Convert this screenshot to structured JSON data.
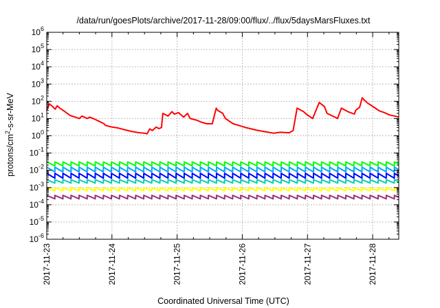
{
  "chart_data": {
    "type": "line",
    "title": "/data/run/goesPlots/archive/2017-11-28/09:00/flux/../flux/5daysMarsFluxes.txt",
    "xlabel": "Coordinated Universal Time (UTC)",
    "ylabel": "protons/cm²-s-sr-MeV",
    "ylabel_parts": {
      "pre": "protons/cm",
      "sup": "2",
      "post": "-s-sr-MeV"
    },
    "y_scale": "log",
    "ylim": [
      1e-06,
      1000000.0
    ],
    "y_ticks": [
      {
        "base": "10",
        "exp": "-6",
        "value": 1e-06
      },
      {
        "base": "10",
        "exp": "-5",
        "value": 1e-05
      },
      {
        "base": "10",
        "exp": "-4",
        "value": 0.0001
      },
      {
        "base": "10",
        "exp": "-3",
        "value": 0.001
      },
      {
        "base": "10",
        "exp": "-2",
        "value": 0.01
      },
      {
        "base": "10",
        "exp": "-1",
        "value": 0.1
      },
      {
        "base": "10",
        "exp": "0",
        "value": 1
      },
      {
        "base": "10",
        "exp": "1",
        "value": 10
      },
      {
        "base": "10",
        "exp": "2",
        "value": 100
      },
      {
        "base": "10",
        "exp": "3",
        "value": 1000
      },
      {
        "base": "10",
        "exp": "4",
        "value": 10000
      },
      {
        "base": "10",
        "exp": "5",
        "value": 100000
      },
      {
        "base": "10",
        "exp": "6",
        "value": 1000000
      }
    ],
    "xlim": [
      0,
      5.4
    ],
    "x_ticks": [
      {
        "label": "2017-11-23",
        "value": 0
      },
      {
        "label": "2017-11-24",
        "value": 1
      },
      {
        "label": "2017-11-25",
        "value": 2
      },
      {
        "label": "2017-11-26",
        "value": 3
      },
      {
        "label": "2017-11-27",
        "value": 4
      },
      {
        "label": "2017-11-28",
        "value": 5
      }
    ],
    "grid": true,
    "legend": "none",
    "series": [
      {
        "color": "#ff0000",
        "x": [
          0,
          0.04,
          0.09,
          0.13,
          0.16,
          0.2,
          0.28,
          0.36,
          0.44,
          0.5,
          0.54,
          0.62,
          0.66,
          0.74,
          0.8,
          0.88,
          0.9,
          1.0,
          1.1,
          1.2,
          1.3,
          1.42,
          1.5,
          1.54,
          1.58,
          1.62,
          1.68,
          1.72,
          1.76,
          1.78,
          1.86,
          1.92,
          1.96,
          2.02,
          2.1,
          2.16,
          2.2,
          2.3,
          2.38,
          2.46,
          2.54,
          2.6,
          2.62,
          2.7,
          2.74,
          2.78,
          2.8,
          2.86,
          3.0,
          3.05,
          3.14,
          3.22,
          3.32,
          3.4,
          3.48,
          3.58,
          3.72,
          3.78,
          3.84,
          3.9,
          3.94,
          3.98,
          4.08,
          4.18,
          4.26,
          4.3,
          4.42,
          4.46,
          4.52,
          4.62,
          4.72,
          4.74,
          4.8,
          4.84,
          4.86,
          4.92,
          5.02,
          5.1,
          5.18,
          5.26,
          5.34,
          5.4
        ],
        "y": [
          30,
          70,
          50,
          35,
          55,
          40,
          25,
          15,
          12,
          10,
          14,
          10,
          12,
          9,
          7,
          5,
          4,
          3.2,
          2.8,
          2.2,
          1.8,
          1.5,
          1.4,
          1.3,
          2.5,
          2.0,
          3.2,
          2.6,
          3.0,
          20,
          14,
          25,
          18,
          22,
          12,
          20,
          10,
          8,
          6,
          5,
          5,
          40,
          30,
          20,
          10,
          8,
          7,
          5,
          3.5,
          3.0,
          2.5,
          2.1,
          1.8,
          1.6,
          1.4,
          1.6,
          1.5,
          2.0,
          40,
          30,
          25,
          18,
          10,
          85,
          50,
          20,
          12,
          10,
          40,
          25,
          18,
          30,
          45,
          160,
          130,
          80,
          45,
          28,
          22,
          16,
          14,
          12
        ]
      },
      {
        "color": "#00ff00",
        "base": 0.018,
        "amp": 1.7,
        "period": 0.124,
        "x_start": 0,
        "x_end": 5.4
      },
      {
        "color": "#00a6ff",
        "base": 0.008,
        "amp": 1.9,
        "period": 0.124,
        "x_start": 0,
        "x_end": 5.4
      },
      {
        "color": "#0000ff",
        "base": 0.0035,
        "amp": 1.9,
        "period": 0.124,
        "x_start": 0,
        "x_end": 5.4
      },
      {
        "color": "#00d0b0",
        "base": 0.0018,
        "amp": 1.6,
        "period": 0.124,
        "x_start": 0,
        "x_end": 5.4
      },
      {
        "color": "#ffff00",
        "base": 0.00065,
        "amp": 1.5,
        "period": 0.124,
        "x_start": 0,
        "x_end": 5.4
      },
      {
        "color": "#9a2f78",
        "base": 0.00022,
        "amp": 1.6,
        "period": 0.124,
        "x_start": 0,
        "x_end": 5.4
      }
    ]
  }
}
